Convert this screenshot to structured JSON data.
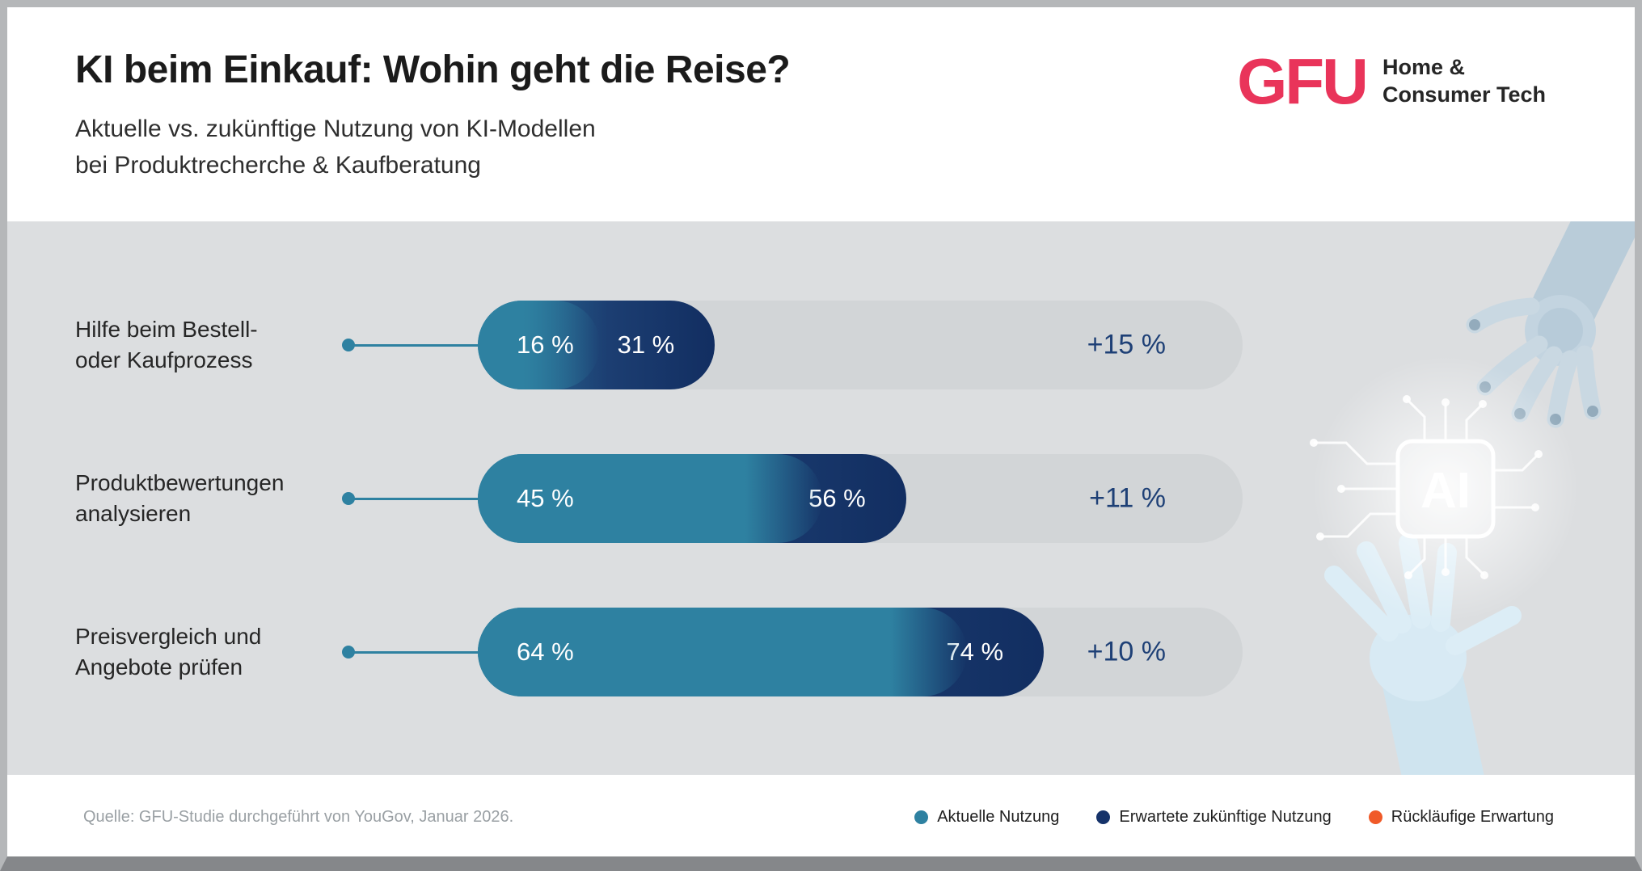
{
  "header": {
    "title": "KI beim Einkauf: Wohin geht die Reise?",
    "subtitle_line1": "Aktuelle vs. zukünftige Nutzung von KI-Modellen",
    "subtitle_line2": "bei Produktrecherche & Kaufberatung",
    "logo": {
      "brand": "GFU",
      "tagline_line1": "Home &",
      "tagline_line2": "Consumer Tech",
      "brand_color": "#e9345a"
    }
  },
  "chart_data": {
    "type": "bar",
    "orientation": "horizontal",
    "title": "KI beim Einkauf: Wohin geht die Reise?",
    "subtitle": "Aktuelle vs. zukünftige Nutzung von KI-Modellen bei Produktrecherche & Kaufberatung",
    "unit": "%",
    "xlim": [
      0,
      100
    ],
    "categories": [
      "Hilfe beim Bestell- oder Kaufprozess",
      "Produktbewertungen analysieren",
      "Preisvergleich und Angebote prüfen"
    ],
    "series": [
      {
        "name": "Aktuelle Nutzung",
        "color": "#2e81a1",
        "values": [
          16,
          45,
          64
        ]
      },
      {
        "name": "Erwartete zukünftige Nutzung",
        "color": "#16336a",
        "values": [
          31,
          56,
          74
        ]
      }
    ],
    "deltas": [
      15,
      11,
      10
    ],
    "rows": [
      {
        "label_line1": "Hilfe beim Bestell-",
        "label_line2": "oder Kaufprozess",
        "current": 16,
        "future": 31,
        "current_label": "16 %",
        "future_label": "31 %",
        "delta_label": "+15 %"
      },
      {
        "label_line1": "Produktbewertungen",
        "label_line2": "analysieren",
        "current": 45,
        "future": 56,
        "current_label": "45 %",
        "future_label": "56 %",
        "delta_label": "+11 %"
      },
      {
        "label_line1": "Preisvergleich und",
        "label_line2": "Angebote prüfen",
        "current": 64,
        "future": 74,
        "current_label": "64 %",
        "future_label": "74 %",
        "delta_label": "+10 %"
      }
    ]
  },
  "decoration": {
    "chip_label": "AI"
  },
  "footer": {
    "source": "Quelle: GFU-Studie durchgeführt von YouGov, Januar 2026.",
    "legend": [
      {
        "label": "Aktuelle Nutzung",
        "color": "#2e81a1"
      },
      {
        "label": "Erwartete zukünftige Nutzung",
        "color": "#16336a"
      },
      {
        "label": "Rückläufige Erwartung",
        "color": "#f05a28"
      }
    ]
  }
}
